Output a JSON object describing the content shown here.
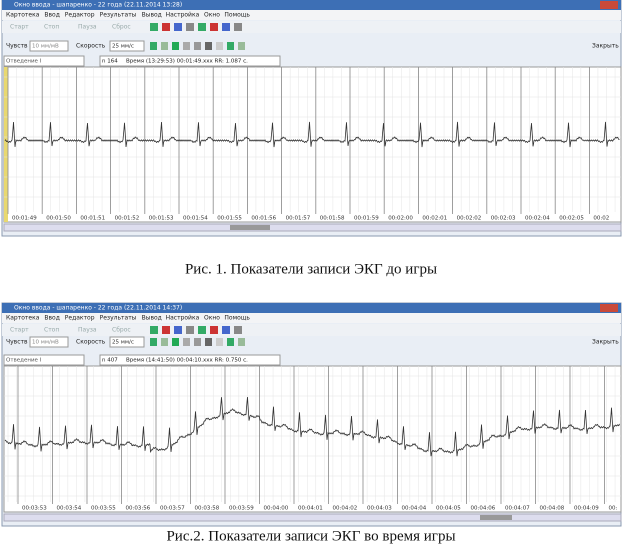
{
  "figures": [
    {
      "window_title": "Окно ввода - шапаренко - 22 года (22.11.2014 13:28)",
      "menu": [
        "Картотека",
        "Ввод",
        "Редактор",
        "Результаты",
        "Вывод",
        "Настройка",
        "Окно",
        "Помощь"
      ],
      "buttons": [
        "Старт",
        "Стоп",
        "Пауза",
        "Сброс"
      ],
      "sensitivity_label": "Чувств",
      "sensitivity": "10 мм/мВ",
      "speed_label": "Скорость",
      "speed": "25 мм/с",
      "close": "Закрыть",
      "lead": "Отведение I",
      "counter": "n 164",
      "time": "Время (13:29:53) 00:01:49.xxx RR: 1.087 c.",
      "time_labels": [
        "00:01:49",
        "00:01:50",
        "00:01:51",
        "00:01:52",
        "00:01:53",
        "00:01:54",
        "00:01:55",
        "00:01:56",
        "00:01:57",
        "00:01:58",
        "00:01:59",
        "00:02:00",
        "00:02:01",
        "00:02:02",
        "00:02:03",
        "00:02:04",
        "00:02:05",
        "00:02"
      ],
      "caption": "Рис. 1. Показатели записи ЭКГ до игры"
    },
    {
      "window_title": "Окно ввода - шапаренко - 22 года (22.11.2014 14:37)",
      "menu": [
        "Картотека",
        "Ввод",
        "Редактор",
        "Результаты",
        "Вывод",
        "Настройка",
        "Окно",
        "Помощь"
      ],
      "buttons": [
        "Старт",
        "Стоп",
        "Пауза",
        "Сброс"
      ],
      "sensitivity_label": "Чувств",
      "sensitivity": "10 мм/мВ",
      "speed_label": "Скорость",
      "speed": "25 мм/с",
      "close": "Закрыть",
      "lead": "Отведение I",
      "counter": "n 407",
      "time": "Время (14:41:50) 00:04:10.xxx RR: 0.750 c.",
      "time_labels": [
        "00:03:53",
        "00:03:54",
        "00:03:55",
        "00:03:56",
        "00:03:57",
        "00:03:58",
        "00:03:59",
        "00:04:00",
        "00:04:01",
        "00:04:02",
        "00:04:03",
        "00:04:04",
        "00:04:05",
        "00:04:06",
        "00:04:07",
        "00:04:08",
        "00:04:09",
        "00:"
      ],
      "caption": "Рис.2. Показатели записи ЭКГ во время игры"
    }
  ]
}
